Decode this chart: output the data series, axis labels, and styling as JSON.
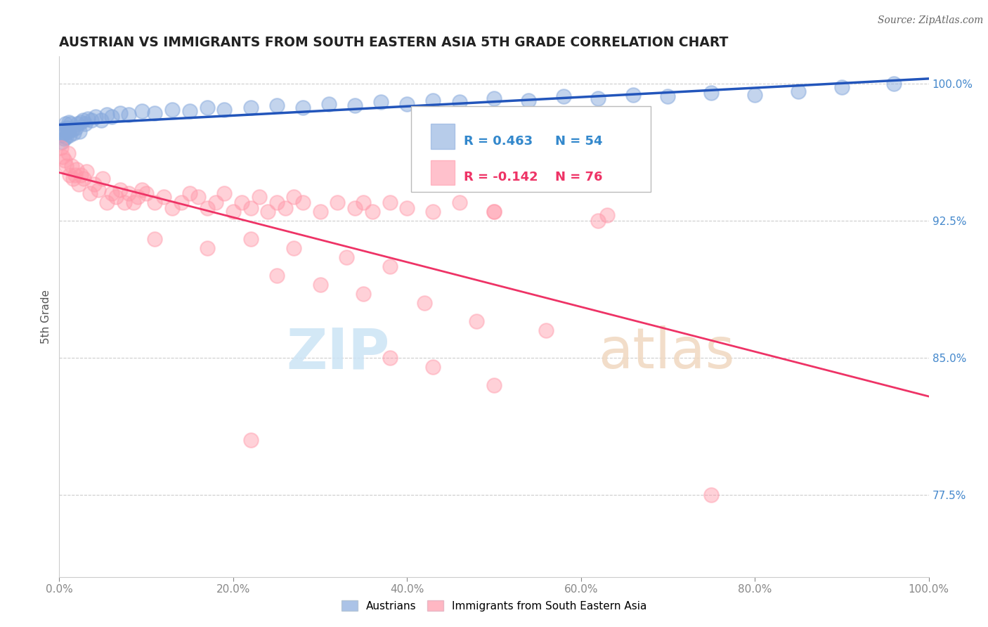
{
  "title": "AUSTRIAN VS IMMIGRANTS FROM SOUTH EASTERN ASIA 5TH GRADE CORRELATION CHART",
  "source": "Source: ZipAtlas.com",
  "ylabel": "5th Grade",
  "xlim": [
    0.0,
    100.0
  ],
  "ylim": [
    73.0,
    101.5
  ],
  "yticks": [
    77.5,
    85.0,
    92.5,
    100.0
  ],
  "xticks": [
    0.0,
    20.0,
    40.0,
    60.0,
    80.0,
    100.0
  ],
  "blue_color": "#88aadd",
  "pink_color": "#ff99aa",
  "blue_line_color": "#2255bb",
  "pink_line_color": "#ee3366",
  "legend_r_blue": "R = 0.463",
  "legend_n_blue": "N = 54",
  "legend_r_pink": "R = -0.142",
  "legend_n_pink": "N = 76",
  "legend_label_blue": "Austrians",
  "legend_label_pink": "Immigrants from South Eastern Asia",
  "blue_x": [
    0.2,
    0.3,
    0.4,
    0.5,
    0.6,
    0.7,
    0.8,
    0.9,
    1.0,
    1.1,
    1.2,
    1.3,
    1.5,
    1.7,
    1.9,
    2.1,
    2.3,
    2.5,
    2.7,
    3.0,
    3.3,
    3.7,
    4.2,
    4.8,
    5.5,
    6.0,
    7.0,
    8.0,
    9.5,
    11.0,
    13.0,
    15.0,
    17.0,
    19.0,
    22.0,
    25.0,
    28.0,
    31.0,
    34.0,
    37.0,
    40.0,
    43.0,
    46.0,
    50.0,
    54.0,
    58.0,
    62.0,
    66.0,
    70.0,
    75.0,
    80.0,
    85.0,
    90.0,
    96.0
  ],
  "blue_y": [
    97.2,
    96.8,
    97.5,
    97.0,
    97.3,
    97.8,
    97.1,
    97.6,
    97.4,
    97.9,
    97.2,
    97.8,
    97.5,
    97.3,
    97.6,
    97.8,
    97.4,
    97.9,
    98.0,
    97.8,
    98.1,
    98.0,
    98.2,
    98.0,
    98.3,
    98.2,
    98.4,
    98.3,
    98.5,
    98.4,
    98.6,
    98.5,
    98.7,
    98.6,
    98.7,
    98.8,
    98.7,
    98.9,
    98.8,
    99.0,
    98.9,
    99.1,
    99.0,
    99.2,
    99.1,
    99.3,
    99.2,
    99.4,
    99.3,
    99.5,
    99.4,
    99.6,
    99.8,
    100.0
  ],
  "pink_x": [
    0.2,
    0.4,
    0.6,
    0.8,
    1.0,
    1.2,
    1.4,
    1.6,
    1.8,
    2.0,
    2.2,
    2.5,
    2.8,
    3.1,
    3.5,
    4.0,
    4.5,
    5.0,
    5.5,
    6.0,
    6.5,
    7.0,
    7.5,
    8.0,
    8.5,
    9.0,
    9.5,
    10.0,
    11.0,
    12.0,
    13.0,
    14.0,
    15.0,
    16.0,
    17.0,
    18.0,
    19.0,
    20.0,
    21.0,
    22.0,
    23.0,
    24.0,
    25.0,
    26.0,
    27.0,
    28.0,
    30.0,
    32.0,
    34.0,
    36.0,
    38.0,
    40.0,
    43.0,
    46.0,
    50.0,
    11.0,
    17.0,
    22.0,
    27.0,
    33.0,
    38.0,
    25.0,
    30.0,
    35.0,
    42.0,
    48.0,
    56.0,
    38.0,
    43.0,
    50.0,
    22.0,
    62.0,
    35.0,
    50.0,
    63.0,
    75.0
  ],
  "pink_y": [
    96.5,
    96.0,
    95.8,
    95.5,
    96.2,
    95.0,
    95.5,
    94.8,
    95.0,
    95.3,
    94.5,
    95.0,
    94.8,
    95.2,
    94.0,
    94.5,
    94.2,
    94.8,
    93.5,
    94.0,
    93.8,
    94.2,
    93.5,
    94.0,
    93.5,
    93.8,
    94.2,
    94.0,
    93.5,
    93.8,
    93.2,
    93.5,
    94.0,
    93.8,
    93.2,
    93.5,
    94.0,
    93.0,
    93.5,
    93.2,
    93.8,
    93.0,
    93.5,
    93.2,
    93.8,
    93.5,
    93.0,
    93.5,
    93.2,
    93.0,
    93.5,
    93.2,
    93.0,
    93.5,
    93.0,
    91.5,
    91.0,
    91.5,
    91.0,
    90.5,
    90.0,
    89.5,
    89.0,
    88.5,
    88.0,
    87.0,
    86.5,
    85.0,
    84.5,
    83.5,
    80.5,
    92.5,
    93.5,
    93.0,
    92.8,
    77.5
  ]
}
